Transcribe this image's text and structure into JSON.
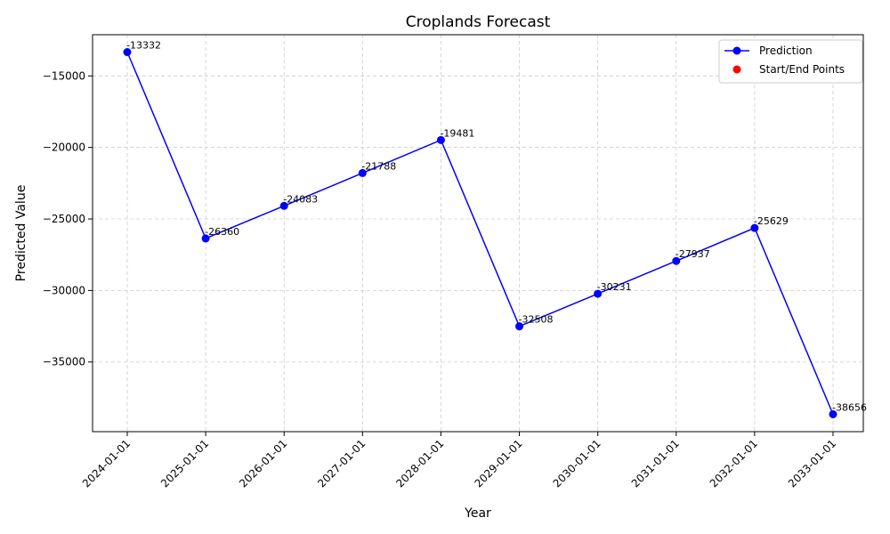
{
  "chart_data": {
    "type": "line",
    "title": "Croplands Forecast",
    "xlabel": "Year",
    "ylabel": "Predicted Value",
    "categories": [
      "2024-01-01",
      "2025-01-01",
      "2026-01-01",
      "2027-01-01",
      "2028-01-01",
      "2029-01-01",
      "2030-01-01",
      "2031-01-01",
      "2032-01-01",
      "2033-01-01"
    ],
    "series": [
      {
        "name": "Prediction",
        "values": [
          -13332,
          -26360,
          -24083,
          -21788,
          -19481,
          -32508,
          -30231,
          -27937,
          -25629,
          -38656
        ],
        "data_labels": [
          "-13332",
          "-26360",
          "-24083",
          "-21788",
          "-19481",
          "-32508",
          "-30231",
          "-27937",
          "-25629",
          "-38656"
        ],
        "color": "#0000ff"
      }
    ],
    "start_end_points": {
      "name": "Start/End Points",
      "color": "#ff0000"
    },
    "yticks": [
      -15000,
      -20000,
      -25000,
      -30000,
      -35000
    ],
    "ytick_labels": [
      "−15000",
      "−20000",
      "−25000",
      "−30000",
      "−35000"
    ],
    "ylim": [
      -39870,
      -12118
    ],
    "grid": true,
    "legend_position": "top-right"
  }
}
